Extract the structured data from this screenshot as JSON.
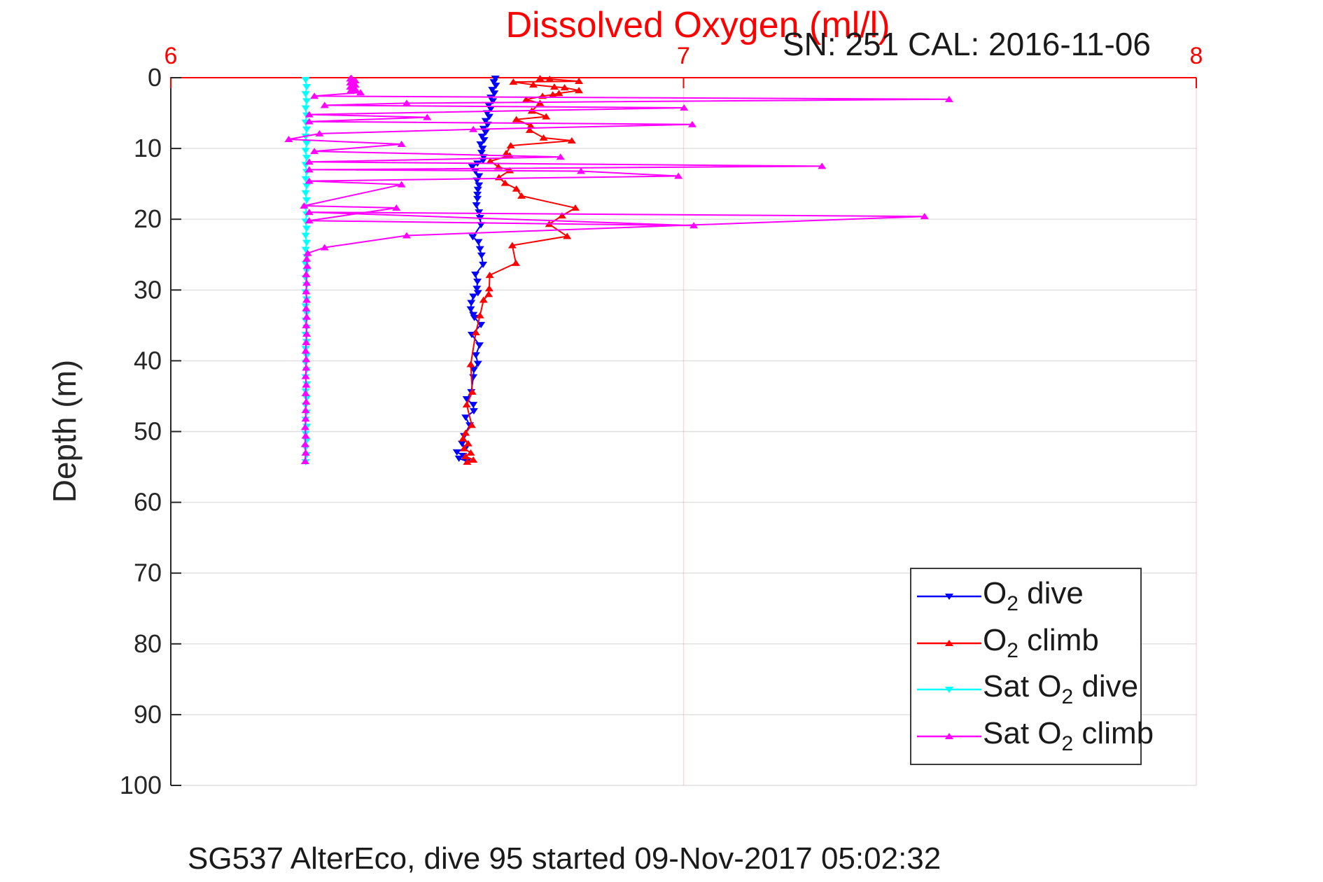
{
  "title": "Dissolved Oxygen (ml/l)",
  "subtitle": "SN: 251  CAL: 2016-11-06",
  "caption": "SG537 AlterEco, dive 95 started 09-Nov-2017 05:02:32",
  "colors": {
    "title": "#ff0000",
    "x_axis": "#ff0000",
    "y_axis": "#262626",
    "x_grid": "rgba(255,0,0,0.16)",
    "y_grid": "rgba(38,38,38,0.15)",
    "text": "#1a1a1a"
  },
  "chart_data": {
    "type": "line",
    "title": "Dissolved Oxygen (ml/l)",
    "xlabel": "Dissolved Oxygen (ml/l)",
    "ylabel": "Depth (m)",
    "xlim": [
      6,
      8
    ],
    "ylim": [
      0,
      100
    ],
    "y_reversed": true,
    "x_axis_location": "top",
    "xticks": [
      6,
      7,
      8
    ],
    "yticks": [
      0,
      10,
      20,
      30,
      40,
      50,
      60,
      70,
      80,
      90,
      100
    ],
    "grid": true,
    "legend_position": "lower-right",
    "legend": [
      {
        "pre": "O",
        "sub": "2",
        "post": " dive"
      },
      {
        "pre": "O",
        "sub": "2",
        "post": " climb"
      },
      {
        "pre": "Sat O",
        "sub": "2",
        "post": " dive"
      },
      {
        "pre": "Sat O",
        "sub": "2",
        "post": " climb"
      }
    ],
    "series": [
      {
        "name": "O2 dive",
        "color": "#0000ff",
        "marker": "triangle-down",
        "points": [
          [
            6.633,
            0.1
          ],
          [
            6.63,
            0.6
          ],
          [
            6.634,
            1.1
          ],
          [
            6.627,
            1.7
          ],
          [
            6.631,
            2.2
          ],
          [
            6.624,
            2.8
          ],
          [
            6.628,
            3.3
          ],
          [
            6.62,
            3.9
          ],
          [
            6.624,
            4.4
          ],
          [
            6.617,
            5.0
          ],
          [
            6.621,
            5.5
          ],
          [
            6.614,
            6.1
          ],
          [
            6.618,
            6.6
          ],
          [
            6.61,
            7.2
          ],
          [
            6.614,
            7.7
          ],
          [
            6.607,
            8.3
          ],
          [
            6.611,
            8.8
          ],
          [
            6.604,
            9.4
          ],
          [
            6.608,
            10.0
          ],
          [
            6.606,
            10.6
          ],
          [
            6.61,
            11.2
          ],
          [
            6.609,
            11.7
          ],
          [
            6.598,
            12.1
          ],
          [
            6.588,
            12.6
          ],
          [
            6.594,
            13.2
          ],
          [
            6.601,
            13.9
          ],
          [
            6.597,
            14.5
          ],
          [
            6.601,
            15.2
          ],
          [
            6.599,
            15.8
          ],
          [
            6.598,
            16.5
          ],
          [
            6.598,
            17.1
          ],
          [
            6.596,
            18.0
          ],
          [
            6.601,
            19.0
          ],
          [
            6.603,
            19.8
          ],
          [
            6.605,
            20.8
          ],
          [
            6.589,
            22.5
          ],
          [
            6.6,
            23.2
          ],
          [
            6.603,
            24.2
          ],
          [
            6.606,
            25.1
          ],
          [
            6.609,
            26.4
          ],
          [
            6.594,
            27.8
          ],
          [
            6.598,
            28.8
          ],
          [
            6.597,
            29.8
          ],
          [
            6.599,
            30.4
          ],
          [
            6.59,
            30.9
          ],
          [
            6.586,
            31.8
          ],
          [
            6.585,
            32.7
          ],
          [
            6.59,
            33.5
          ],
          [
            6.592,
            33.9
          ],
          [
            6.605,
            34.9
          ],
          [
            6.587,
            36.3
          ],
          [
            6.602,
            37.8
          ],
          [
            6.595,
            39.2
          ],
          [
            6.599,
            40.4
          ],
          [
            6.591,
            41.3
          ],
          [
            6.59,
            42.3
          ],
          [
            6.586,
            44.4
          ],
          [
            6.577,
            45.4
          ],
          [
            6.59,
            46.2
          ],
          [
            6.591,
            47.1
          ],
          [
            6.575,
            48.0
          ],
          [
            6.583,
            49.1
          ],
          [
            6.572,
            50.6
          ],
          [
            6.568,
            51.7
          ],
          [
            6.575,
            52.3
          ],
          [
            6.558,
            52.9
          ],
          [
            6.57,
            53.4
          ],
          [
            6.562,
            53.8
          ],
          [
            6.578,
            54.2
          ]
        ]
      },
      {
        "name": "O2 climb",
        "color": "#ff0000",
        "marker": "triangle-up",
        "points": [
          [
            6.578,
            54.3
          ],
          [
            6.59,
            54.0
          ],
          [
            6.575,
            53.5
          ],
          [
            6.585,
            53.0
          ],
          [
            6.572,
            52.4
          ],
          [
            6.58,
            51.7
          ],
          [
            6.57,
            51.0
          ],
          [
            6.575,
            50.2
          ],
          [
            6.587,
            49.1
          ],
          [
            6.577,
            46.2
          ],
          [
            6.588,
            44.4
          ],
          [
            6.585,
            40.5
          ],
          [
            6.595,
            36.0
          ],
          [
            6.603,
            33.6
          ],
          [
            6.61,
            31.4
          ],
          [
            6.62,
            30.6
          ],
          [
            6.621,
            29.8
          ],
          [
            6.622,
            27.9
          ],
          [
            6.673,
            26.2
          ],
          [
            6.666,
            23.7
          ],
          [
            6.773,
            22.4
          ],
          [
            6.738,
            20.7
          ],
          [
            6.763,
            19.5
          ],
          [
            6.789,
            18.4
          ],
          [
            6.684,
            16.7
          ],
          [
            6.674,
            15.7
          ],
          [
            6.652,
            14.9
          ],
          [
            6.64,
            14.1
          ],
          [
            6.661,
            13.1
          ],
          [
            6.639,
            12.6
          ],
          [
            6.623,
            11.8
          ],
          [
            6.661,
            11.0
          ],
          [
            6.654,
            10.7
          ],
          [
            6.663,
            9.6
          ],
          [
            6.782,
            8.9
          ],
          [
            6.727,
            8.5
          ],
          [
            6.7,
            7.4
          ],
          [
            6.702,
            6.8
          ],
          [
            6.674,
            5.9
          ],
          [
            6.732,
            5.5
          ],
          [
            6.704,
            4.7
          ],
          [
            6.72,
            3.6
          ],
          [
            6.693,
            3.1
          ],
          [
            6.725,
            2.6
          ],
          [
            6.745,
            2.4
          ],
          [
            6.757,
            2.2
          ],
          [
            6.796,
            1.8
          ],
          [
            6.768,
            1.4
          ],
          [
            6.748,
            1.3
          ],
          [
            6.707,
            1.0
          ],
          [
            6.668,
            0.6
          ],
          [
            6.796,
            0.5
          ],
          [
            6.739,
            0.2
          ],
          [
            6.72,
            0.1
          ]
        ]
      },
      {
        "name": "Sat O2 dive",
        "color": "#00ffff",
        "marker": "triangle-down",
        "points": [
          [
            6.263,
            0.3
          ],
          [
            6.265,
            1.3
          ],
          [
            6.263,
            2.3
          ],
          [
            6.265,
            3.3
          ],
          [
            6.263,
            4.3
          ],
          [
            6.265,
            5.3
          ],
          [
            6.263,
            6.3
          ],
          [
            6.265,
            7.3
          ],
          [
            6.263,
            8.3
          ],
          [
            6.265,
            9.3
          ],
          [
            6.263,
            10.3
          ],
          [
            6.265,
            11.3
          ],
          [
            6.263,
            12.3
          ],
          [
            6.265,
            13.3
          ],
          [
            6.263,
            14.3
          ],
          [
            6.265,
            15.3
          ],
          [
            6.263,
            16.3
          ],
          [
            6.265,
            17.3
          ],
          [
            6.263,
            18.3
          ],
          [
            6.265,
            19.3
          ],
          [
            6.263,
            20.3
          ],
          [
            6.265,
            21.3
          ],
          [
            6.263,
            22.3
          ],
          [
            6.265,
            23.3
          ],
          [
            6.263,
            24.3
          ],
          [
            6.265,
            25.3
          ],
          [
            6.263,
            26.3
          ],
          [
            6.265,
            27.3
          ],
          [
            6.263,
            28.3
          ],
          [
            6.265,
            29.3
          ],
          [
            6.263,
            30.3
          ],
          [
            6.265,
            31.3
          ],
          [
            6.263,
            32.3
          ],
          [
            6.265,
            33.3
          ],
          [
            6.263,
            34.3
          ],
          [
            6.265,
            35.3
          ],
          [
            6.263,
            36.3
          ],
          [
            6.265,
            37.3
          ],
          [
            6.263,
            38.3
          ],
          [
            6.265,
            39.3
          ],
          [
            6.263,
            40.3
          ],
          [
            6.265,
            41.3
          ],
          [
            6.263,
            42.3
          ],
          [
            6.265,
            43.3
          ],
          [
            6.263,
            44.3
          ],
          [
            6.265,
            45.3
          ],
          [
            6.263,
            46.3
          ],
          [
            6.265,
            47.3
          ],
          [
            6.263,
            48.3
          ],
          [
            6.265,
            49.3
          ],
          [
            6.263,
            50.3
          ],
          [
            6.265,
            51.3
          ],
          [
            6.263,
            52.3
          ],
          [
            6.265,
            53.3
          ],
          [
            6.263,
            54.3
          ]
        ]
      },
      {
        "name": "Sat O2 climb",
        "color": "#ff00ff",
        "marker": "triangle-up",
        "points": [
          [
            6.262,
            54.2
          ],
          [
            6.263,
            53.0
          ],
          [
            6.262,
            51.8
          ],
          [
            6.263,
            50.6
          ],
          [
            6.262,
            49.4
          ],
          [
            6.263,
            48.2
          ],
          [
            6.263,
            47.0
          ],
          [
            6.264,
            45.8
          ],
          [
            6.263,
            44.6
          ],
          [
            6.264,
            43.4
          ],
          [
            6.263,
            42.2
          ],
          [
            6.264,
            41.0
          ],
          [
            6.264,
            39.8
          ],
          [
            6.263,
            38.6
          ],
          [
            6.264,
            37.4
          ],
          [
            6.265,
            36.2
          ],
          [
            6.264,
            35.0
          ],
          [
            6.265,
            33.8
          ],
          [
            6.264,
            32.6
          ],
          [
            6.265,
            31.4
          ],
          [
            6.264,
            30.2
          ],
          [
            6.265,
            29.0
          ],
          [
            6.264,
            27.8
          ],
          [
            6.266,
            26.6
          ],
          [
            6.265,
            25.6
          ],
          [
            6.267,
            24.8
          ],
          [
            6.3,
            24.0
          ],
          [
            6.46,
            22.3
          ],
          [
            7.47,
            19.6
          ],
          [
            6.27,
            19.0
          ],
          [
            7.02,
            20.9
          ],
          [
            6.27,
            20.2
          ],
          [
            6.44,
            18.4
          ],
          [
            6.26,
            18.1
          ],
          [
            6.45,
            15.1
          ],
          [
            6.27,
            14.6
          ],
          [
            6.99,
            13.9
          ],
          [
            6.8,
            13.2
          ],
          [
            6.27,
            13.0
          ],
          [
            7.27,
            12.5
          ],
          [
            6.27,
            11.9
          ],
          [
            6.76,
            11.2
          ],
          [
            6.28,
            10.4
          ],
          [
            6.45,
            9.4
          ],
          [
            6.23,
            8.7
          ],
          [
            6.29,
            7.9
          ],
          [
            6.59,
            7.3
          ],
          [
            7.017,
            6.6
          ],
          [
            6.27,
            6.2
          ],
          [
            6.5,
            5.6
          ],
          [
            6.27,
            5.2
          ],
          [
            7.001,
            4.25
          ],
          [
            6.3,
            3.9
          ],
          [
            6.46,
            3.6
          ],
          [
            7.518,
            3.05
          ],
          [
            6.28,
            2.6
          ],
          [
            6.37,
            2.1
          ],
          [
            6.35,
            1.9
          ],
          [
            6.36,
            1.6
          ],
          [
            6.35,
            1.3
          ],
          [
            6.36,
            1.0
          ],
          [
            6.35,
            0.7
          ],
          [
            6.36,
            0.4
          ],
          [
            6.35,
            0.15
          ],
          [
            6.352,
            0.05
          ]
        ]
      }
    ]
  }
}
